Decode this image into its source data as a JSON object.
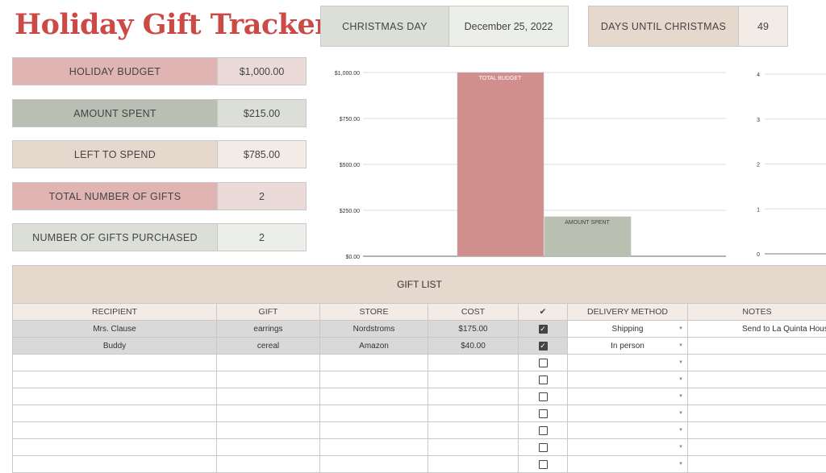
{
  "title": "Holiday Gift Tracker",
  "header": {
    "christmas_day_label": "CHRISTMAS DAY",
    "christmas_day_value": "December 25, 2022",
    "days_until_label": "DAYS UNTIL CHRISTMAS",
    "days_until_value": "49"
  },
  "summary": [
    {
      "label": "HOLIDAY BUDGET",
      "value": "$1,000.00"
    },
    {
      "label": "AMOUNT SPENT",
      "value": "$215.00"
    },
    {
      "label": "LEFT TO SPEND",
      "value": "$785.00"
    },
    {
      "label": "TOTAL NUMBER OF GIFTS",
      "value": "2"
    },
    {
      "label": "NUMBER OF GIFTS PURCHASED",
      "value": "2"
    }
  ],
  "colors": {
    "title": "#cc4a46",
    "pink": "#e0b4b2",
    "sage": "#b9bfb3",
    "beige": "#e5d8cc",
    "bar_budget": "#d08f8d",
    "bar_spent": "#b9bfb1"
  },
  "chart_data": [
    {
      "type": "bar",
      "categories": [
        "TOTAL BUDGET",
        "AMOUNT SPENT"
      ],
      "values": [
        1000,
        215
      ],
      "ylim": [
        0,
        1000
      ],
      "yticks": [
        "$0.00",
        "$250.00",
        "$500.00",
        "$750.00",
        "$1,000.00"
      ],
      "grid": true
    },
    {
      "type": "bar",
      "ylim": [
        0,
        4
      ],
      "yticks": [
        "0",
        "1",
        "2",
        "3",
        "4"
      ],
      "grid": true
    }
  ],
  "gift_list": {
    "title": "GIFT LIST",
    "columns": [
      "RECIPIENT",
      "GIFT",
      "STORE",
      "COST",
      "✔",
      "DELIVERY METHOD",
      "NOTES"
    ],
    "rows": [
      {
        "recipient": "Mrs. Clause",
        "gift": "earrings",
        "store": "Nordstroms",
        "cost": "$175.00",
        "purchased": true,
        "delivery": "Shipping",
        "notes": "Send to La Quinta House"
      },
      {
        "recipient": "Buddy",
        "gift": "cereal",
        "store": "Amazon",
        "cost": "$40.00",
        "purchased": true,
        "delivery": "In person",
        "notes": ""
      }
    ],
    "empty_rows": 7
  }
}
